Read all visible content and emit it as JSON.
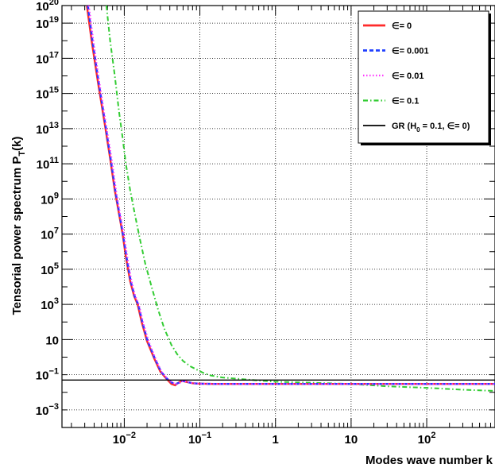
{
  "chart_data": {
    "type": "line",
    "xlabel": "Modes wave number k",
    "ylabel": "Tensorial power spectrum P_T(k)",
    "xscale": "log",
    "yscale": "log",
    "xlim": [
      0.0015,
      800
    ],
    "ylim": [
      0.0001,
      1e+20
    ],
    "grid": true,
    "legend_position": "top-right",
    "x_ticks": [
      {
        "value": 0.01,
        "base": "10",
        "exp": "−2"
      },
      {
        "value": 0.1,
        "base": "10",
        "exp": "−1"
      },
      {
        "value": 1,
        "base": "1",
        "exp": ""
      },
      {
        "value": 10,
        "base": "10",
        "exp": ""
      },
      {
        "value": 100,
        "base": "10",
        "exp": "2"
      }
    ],
    "y_ticks": [
      {
        "value": 0.001,
        "base": "10",
        "exp": "−3"
      },
      {
        "value": 0.1,
        "base": "10",
        "exp": "−1"
      },
      {
        "value": 10,
        "base": "10",
        "exp": ""
      },
      {
        "value": 1000,
        "base": "10",
        "exp": "3"
      },
      {
        "value": 100000.0,
        "base": "10",
        "exp": "5"
      },
      {
        "value": 10000000.0,
        "base": "10",
        "exp": "7"
      },
      {
        "value": 1000000000.0,
        "base": "10",
        "exp": "9"
      },
      {
        "value": 100000000000.0,
        "base": "10",
        "exp": "11"
      },
      {
        "value": 10000000000000.0,
        "base": "10",
        "exp": "13"
      },
      {
        "value": 1000000000000000.0,
        "base": "10",
        "exp": "15"
      },
      {
        "value": 1e+17,
        "base": "10",
        "exp": "17"
      },
      {
        "value": 1e+19,
        "base": "10",
        "exp": "19"
      },
      {
        "value": 1e+20,
        "base": "10",
        "exp": "20"
      }
    ],
    "series": [
      {
        "name": "∈= 0",
        "color": "#ff2b2b",
        "dash": "",
        "width": 2.4,
        "x": [
          0.0032,
          0.0037,
          0.0045,
          0.0055,
          0.0065,
          0.0075,
          0.0085,
          0.0095,
          0.0105,
          0.012,
          0.0135,
          0.015,
          0.017,
          0.02,
          0.025,
          0.03,
          0.036,
          0.042,
          0.047,
          0.052,
          0.058,
          0.065,
          0.08,
          0.1,
          0.15,
          0.3,
          1,
          10,
          100,
          800
        ],
        "y": [
          1e+20,
          1e+18,
          4000000000000000.0,
          20000000000000.0,
          200000000000.0,
          3000000000.0,
          150000000.0,
          10000000.0,
          500000.0,
          20000.0,
          3000,
          1000,
          100,
          8,
          0.8,
          0.15,
          0.06,
          0.03,
          0.025,
          0.035,
          0.045,
          0.04,
          0.033,
          0.031,
          0.03,
          0.03,
          0.03,
          0.03,
          0.03,
          0.03
        ]
      },
      {
        "name": "∈= 0.001",
        "color": "#1f3fff",
        "dash": "5,3",
        "width": 2.4,
        "x": [
          0.0033,
          0.0038,
          0.0046,
          0.0056,
          0.0066,
          0.0076,
          0.0086,
          0.0096,
          0.0107,
          0.0122,
          0.0137,
          0.0153,
          0.0173,
          0.0204,
          0.0255,
          0.0306,
          0.0367,
          0.0428,
          0.048,
          0.053,
          0.059,
          0.066,
          0.08,
          0.1,
          0.15,
          0.3,
          1,
          10,
          100,
          800
        ],
        "y": [
          1e+20,
          1e+18,
          4000000000000000.0,
          20000000000000.0,
          200000000000.0,
          3000000000.0,
          150000000.0,
          10000000.0,
          500000.0,
          20000.0,
          3000,
          1000,
          100,
          8,
          0.8,
          0.15,
          0.06,
          0.035,
          0.03,
          0.035,
          0.045,
          0.04,
          0.033,
          0.031,
          0.03,
          0.03,
          0.03,
          0.03,
          0.03,
          0.03
        ]
      },
      {
        "name": "∈= 0.01",
        "color": "#ff33ff",
        "dash": "1.5,2.5",
        "width": 2.0,
        "x": [
          0.0034,
          0.0039,
          0.0047,
          0.0057,
          0.0068,
          0.0078,
          0.0088,
          0.0099,
          0.011,
          0.0125,
          0.014,
          0.0156,
          0.0177,
          0.021,
          0.026,
          0.031,
          0.037,
          0.043,
          0.049,
          0.055,
          0.06,
          0.068,
          0.08,
          0.1,
          0.15,
          0.3,
          1,
          10,
          100,
          800
        ],
        "y": [
          1e+20,
          1e+18,
          4000000000000000.0,
          20000000000000.0,
          200000000000.0,
          3000000000.0,
          150000000.0,
          10000000.0,
          500000.0,
          20000.0,
          3000,
          1000,
          100,
          8,
          0.8,
          0.15,
          0.06,
          0.035,
          0.03,
          0.035,
          0.045,
          0.04,
          0.033,
          0.031,
          0.03,
          0.03,
          0.03,
          0.03,
          0.03,
          0.03
        ]
      },
      {
        "name": "∈= 0.1",
        "color": "#33cc33",
        "dash": "6,3,1.5,3",
        "width": 2.0,
        "x": [
          0.0058,
          0.0065,
          0.0075,
          0.0085,
          0.0095,
          0.0105,
          0.012,
          0.014,
          0.016,
          0.019,
          0.023,
          0.028,
          0.034,
          0.042,
          0.05,
          0.06,
          0.075,
          0.09,
          0.11,
          0.14,
          0.2,
          0.5,
          1,
          3,
          10,
          30,
          100,
          300,
          800
        ],
        "y": [
          1e+20,
          1e+18,
          1e+16,
          100000000000000.0,
          3000000000000.0,
          100000000000.0,
          3000000000.0,
          100000000.0,
          6000000.0,
          200000.0,
          10000.0,
          500,
          40,
          5,
          1.5,
          0.6,
          0.3,
          0.2,
          0.13,
          0.09,
          0.07,
          0.05,
          0.04,
          0.035,
          0.03,
          0.022,
          0.018,
          0.014,
          0.012
        ]
      },
      {
        "name": "GR (H₀ = 0.1, ∈= 0)",
        "name_main": "GR (H",
        "name_sub": "0",
        "name_tail": " = 0.1, ∈= 0)",
        "color": "#000000",
        "dash": "",
        "width": 1.4,
        "x": [
          0.0015,
          800
        ],
        "y": [
          0.05,
          0.05
        ]
      }
    ]
  }
}
